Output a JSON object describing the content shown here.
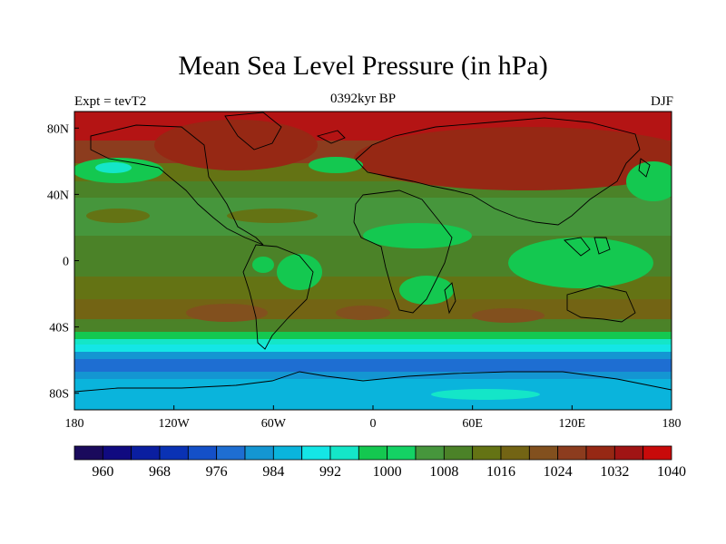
{
  "title": "Mean Sea Level Pressure (in hPa)",
  "left_label": "Expt = tevT2",
  "center_label": "0392kyr BP",
  "right_label": "DJF",
  "x_ticks": [
    "180",
    "120W",
    "60W",
    "0",
    "60E",
    "120E",
    "180"
  ],
  "y_ticks": [
    "80N",
    "40N",
    "0",
    "40S",
    "80S"
  ],
  "colorbar": {
    "labels": [
      "960",
      "968",
      "976",
      "984",
      "992",
      "1000",
      "1008",
      "1016",
      "1024",
      "1032",
      "1040"
    ],
    "colors": [
      "#1a0a5c",
      "#100a80",
      "#0a1ea0",
      "#0a32b4",
      "#1450c8",
      "#1e6ed2",
      "#1496d2",
      "#0ab4dc",
      "#14e6e6",
      "#14e6c8",
      "#14c850",
      "#14d264",
      "#46963c",
      "#4b8228",
      "#647314",
      "#736414",
      "#82501e",
      "#8c3c1e",
      "#962814",
      "#a01414",
      "#c80a0a"
    ]
  },
  "map_data": {
    "projection": "equirectangular",
    "lon_range": [
      -180,
      180
    ],
    "lat_range": [
      -90,
      90
    ],
    "variable": "Mean Sea Level Pressure",
    "units": "hPa",
    "season": "DJF"
  }
}
